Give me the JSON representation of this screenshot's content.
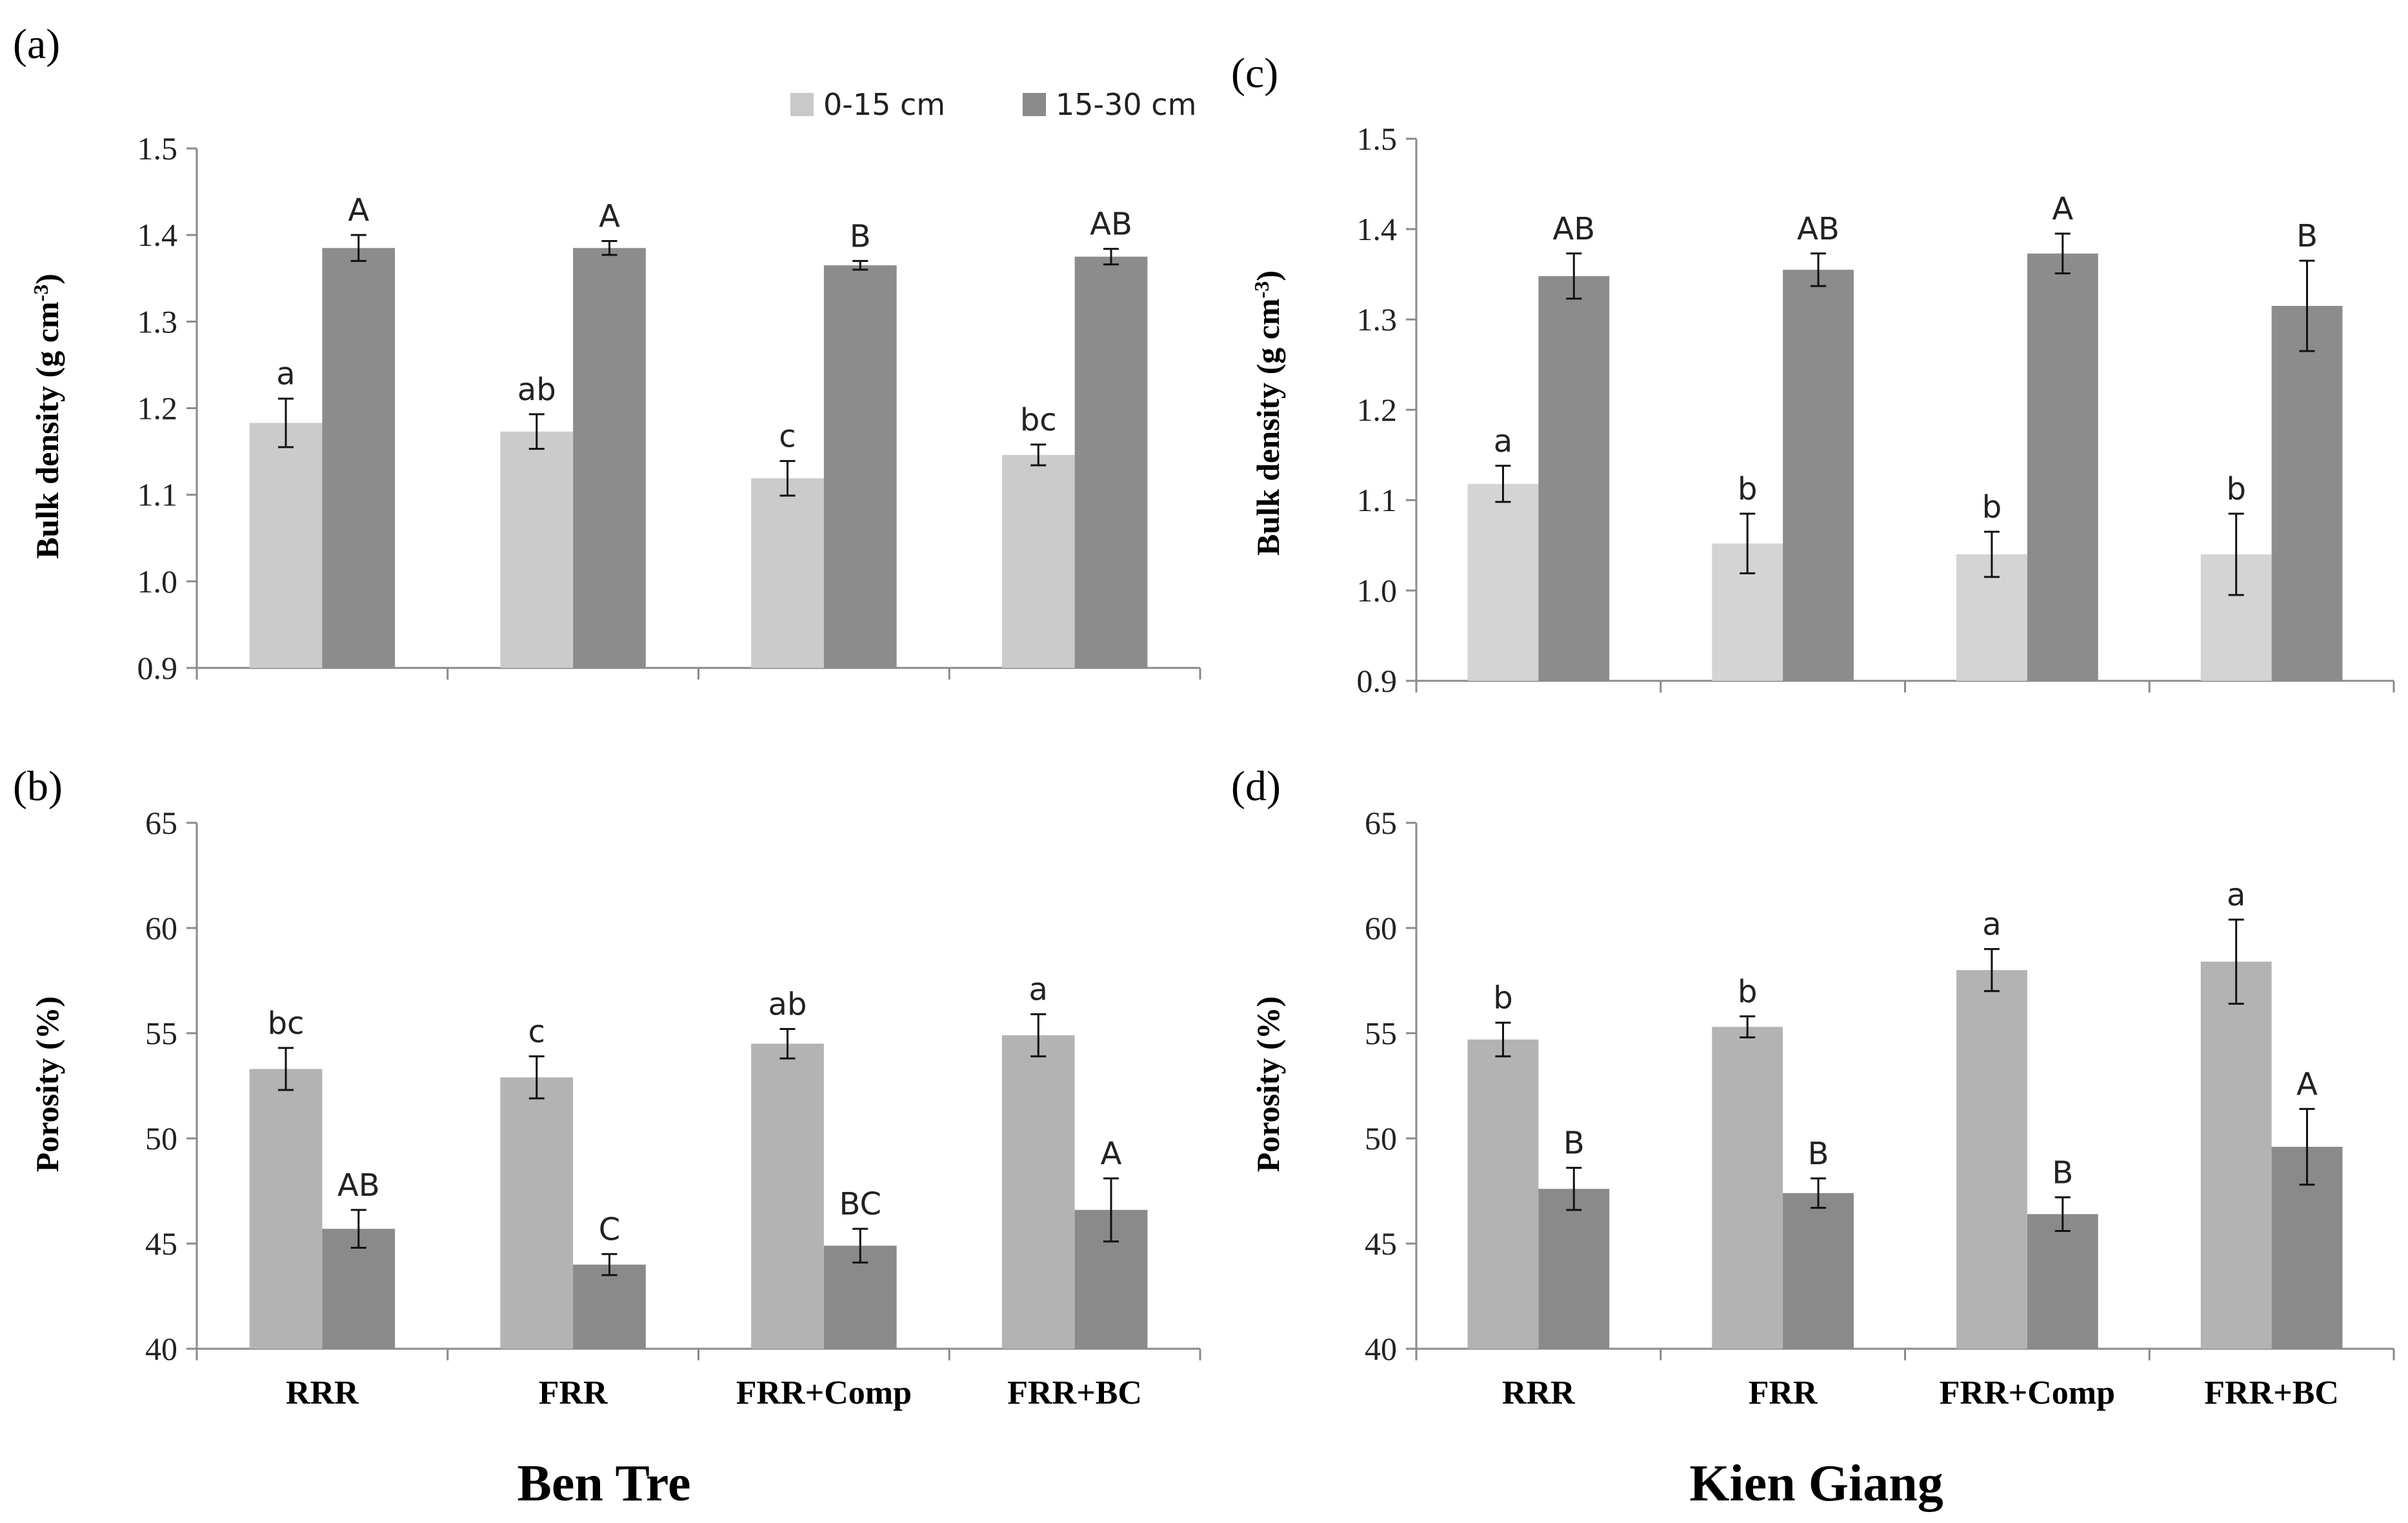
{
  "figure": {
    "legend": [
      {
        "label": "0-15 cm",
        "color": "#c9c9c9"
      },
      {
        "label": "15-30 cm",
        "color": "#8a8a8a"
      }
    ],
    "site_labels": [
      "Ben Tre",
      "Kien Giang"
    ]
  },
  "chart_data": [
    {
      "panel": "(a)",
      "type": "bar",
      "site": "Ben Tre",
      "title": "",
      "xlabel": "",
      "ylabel": "Bulk density (g cm-3)",
      "ylabel_main": "Bulk density (g cm",
      "ylabel_sup": "-3",
      "ylabel_close": ")",
      "ylim": [
        0.9,
        1.5
      ],
      "yticks": [
        "0.9",
        "1.0",
        "1.1",
        "1.2",
        "1.3",
        "1.4",
        "1.5"
      ],
      "categories": [
        "RRR",
        "FRR",
        "FRR+Comp",
        "FRR+BC"
      ],
      "show_category_labels": false,
      "colors": [
        "#cbcbcb",
        "#8c8c8c"
      ],
      "series": [
        {
          "name": "0-15 cm",
          "values": [
            1.183,
            1.173,
            1.119,
            1.146
          ],
          "errors": [
            0.028,
            0.02,
            0.02,
            0.012
          ],
          "letters": [
            "a",
            "ab",
            "c",
            "bc"
          ]
        },
        {
          "name": "15-30 cm",
          "values": [
            1.385,
            1.385,
            1.365,
            1.375
          ],
          "errors": [
            0.015,
            0.008,
            0.005,
            0.009
          ],
          "letters": [
            "A",
            "A",
            "B",
            "AB"
          ]
        }
      ]
    },
    {
      "panel": "(b)",
      "type": "bar",
      "site": "Ben Tre",
      "title": "",
      "xlabel": "",
      "ylabel": "Porosity (%)",
      "ylim": [
        40,
        65
      ],
      "yticks": [
        "40",
        "45",
        "50",
        "55",
        "60",
        "65"
      ],
      "categories": [
        "RRR",
        "FRR",
        "FRR+Comp",
        "FRR+BC"
      ],
      "show_category_labels": true,
      "colors": [
        "#b3b3b3",
        "#8a8a8a"
      ],
      "series": [
        {
          "name": "0-15 cm",
          "values": [
            53.3,
            52.9,
            54.5,
            54.9
          ],
          "errors": [
            1.0,
            1.0,
            0.7,
            1.0
          ],
          "letters": [
            "bc",
            "c",
            "ab",
            "a"
          ]
        },
        {
          "name": "15-30 cm",
          "values": [
            45.7,
            44.0,
            44.9,
            46.6
          ],
          "errors": [
            0.9,
            0.5,
            0.8,
            1.5
          ],
          "letters": [
            "AB",
            "C",
            "BC",
            "A"
          ]
        }
      ]
    },
    {
      "panel": "(c)",
      "type": "bar",
      "site": "Kien Giang",
      "title": "",
      "xlabel": "",
      "ylabel": "Bulk density (g cm-3)",
      "ylabel_main": "Bulk density (g cm",
      "ylabel_sup": "-3",
      "ylabel_close": ")",
      "ylim": [
        0.9,
        1.5
      ],
      "yticks": [
        "0.9",
        "1.0",
        "1.1",
        "1.2",
        "1.3",
        "1.4",
        "1.5"
      ],
      "categories": [
        "RRR",
        "FRR",
        "FRR+Comp",
        "FRR+BC"
      ],
      "show_category_labels": false,
      "colors": [
        "#d4d4d4",
        "#8c8c8c"
      ],
      "series": [
        {
          "name": "0-15 cm",
          "values": [
            1.118,
            1.052,
            1.04,
            1.04
          ],
          "errors": [
            0.02,
            0.033,
            0.025,
            0.045
          ],
          "letters": [
            "a",
            "b",
            "b",
            "b"
          ]
        },
        {
          "name": "15-30 cm",
          "values": [
            1.348,
            1.355,
            1.373,
            1.315
          ],
          "errors": [
            0.025,
            0.018,
            0.022,
            0.05
          ],
          "letters": [
            "AB",
            "AB",
            "A",
            "B"
          ]
        }
      ]
    },
    {
      "panel": "(d)",
      "type": "bar",
      "site": "Kien Giang",
      "title": "",
      "xlabel": "",
      "ylabel": "Porosity (%)",
      "ylim": [
        40,
        65
      ],
      "yticks": [
        "40",
        "45",
        "50",
        "55",
        "60",
        "65"
      ],
      "categories": [
        "RRR",
        "FRR",
        "FRR+Comp",
        "FRR+BC"
      ],
      "show_category_labels": true,
      "colors": [
        "#b3b3b3",
        "#8a8a8a"
      ],
      "series": [
        {
          "name": "0-15 cm",
          "values": [
            54.7,
            55.3,
            58.0,
            58.4
          ],
          "errors": [
            0.8,
            0.5,
            1.0,
            2.0
          ],
          "letters": [
            "b",
            "b",
            "a",
            "a"
          ]
        },
        {
          "name": "15-30 cm",
          "values": [
            47.6,
            47.4,
            46.4,
            49.6
          ],
          "errors": [
            1.0,
            0.7,
            0.8,
            1.8
          ],
          "letters": [
            "B",
            "B",
            "B",
            "A"
          ]
        }
      ]
    }
  ]
}
